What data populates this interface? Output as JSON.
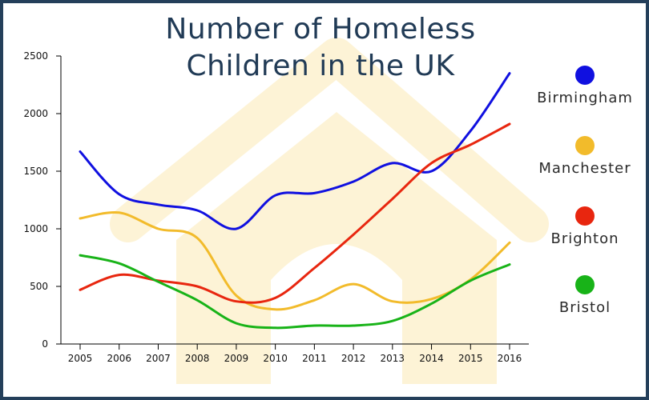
{
  "title_line1": "Number of Homeless",
  "title_line2": "Children in the UK",
  "colors": {
    "frame": "#243f5a",
    "title": "#213b56",
    "watermark": "#fdf3d6"
  },
  "chart_data": {
    "type": "line",
    "title": "Number of Homeless Children in the UK",
    "xlabel": "",
    "ylabel": "",
    "x": [
      2005,
      2006,
      2007,
      2008,
      2009,
      2010,
      2011,
      2012,
      2013,
      2014,
      2015,
      2016
    ],
    "ylim": [
      0,
      2500
    ],
    "yticks": [
      0,
      500,
      1000,
      1500,
      2000,
      2500
    ],
    "grid": false,
    "legend_position": "right",
    "series": [
      {
        "name": "Birmingham",
        "color": "#1010e0",
        "values": [
          1670,
          1300,
          1210,
          1160,
          1000,
          1290,
          1310,
          1410,
          1570,
          1500,
          1850,
          2350
        ]
      },
      {
        "name": "Manchester",
        "color": "#f2bb2b",
        "values": [
          1090,
          1140,
          1000,
          920,
          420,
          300,
          380,
          520,
          370,
          390,
          560,
          880
        ]
      },
      {
        "name": "Brighton",
        "color": "#e8260f",
        "values": [
          470,
          600,
          550,
          500,
          370,
          400,
          660,
          950,
          1260,
          1570,
          1730,
          1910
        ]
      },
      {
        "name": "Bristol",
        "color": "#18b318",
        "values": [
          770,
          700,
          540,
          380,
          180,
          140,
          160,
          160,
          200,
          350,
          550,
          690
        ]
      }
    ]
  }
}
